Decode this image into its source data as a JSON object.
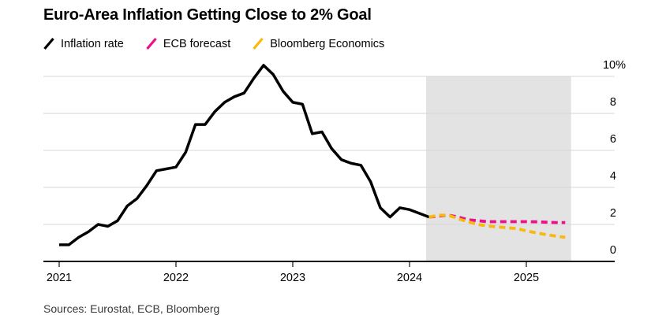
{
  "header": {
    "title": "Euro-Area Inflation Getting Close to 2% Goal"
  },
  "legend": [
    {
      "label": "Inflation rate",
      "color": "#000000"
    },
    {
      "label": "ECB forecast",
      "color": "#ec108d"
    },
    {
      "label": "Bloomberg Economics",
      "color": "#f8b90d"
    }
  ],
  "footer": {
    "sources": "Sources: Eurostat, ECB, Bloomberg"
  },
  "chart_data": {
    "type": "line",
    "title": "Euro-Area Inflation Getting Close to 2% Goal",
    "xlabel": "",
    "ylabel": "",
    "y_axis_suffix": "%",
    "y_ticks": [
      0,
      2,
      4,
      6,
      8,
      10
    ],
    "ylim": [
      0,
      10.9
    ],
    "grid": "horizontal",
    "legend_position": "top-left",
    "x_unit": "months since Jan 2021",
    "x_ticks": [
      {
        "label": "2021",
        "month_index": 0
      },
      {
        "label": "2022",
        "month_index": 12
      },
      {
        "label": "2023",
        "month_index": 24
      },
      {
        "label": "2024",
        "month_index": 36
      },
      {
        "label": "2025",
        "month_index": 48
      }
    ],
    "forecast_band": {
      "start_month_index": 37.7,
      "end_month_index": 52.6
    },
    "series": [
      {
        "name": "Inflation rate",
        "color": "#000000",
        "dash": false,
        "start_month_index": 0,
        "values": [
          0.9,
          0.9,
          1.3,
          1.6,
          2.0,
          1.9,
          2.2,
          3.0,
          3.4,
          4.1,
          4.9,
          5.0,
          5.1,
          5.9,
          7.4,
          7.4,
          8.1,
          8.6,
          8.9,
          9.1,
          9.9,
          10.6,
          10.1,
          9.2,
          8.6,
          8.5,
          6.9,
          7.0,
          6.1,
          5.5,
          5.3,
          5.2,
          4.3,
          2.9,
          2.4,
          2.9,
          2.8,
          2.6,
          2.4
        ]
      },
      {
        "name": "ECB forecast",
        "color": "#ec108d",
        "dash": true,
        "start_month_index": 38,
        "values": [
          2.4,
          2.45,
          2.5,
          2.4,
          2.25,
          2.2,
          2.15,
          2.15,
          2.15,
          2.15,
          2.15,
          2.14,
          2.12,
          2.1,
          2.1
        ]
      },
      {
        "name": "Bloomberg Economics",
        "color": "#f8b90d",
        "dash": true,
        "start_month_index": 38,
        "values": [
          2.4,
          2.5,
          2.5,
          2.3,
          2.15,
          2.0,
          1.92,
          1.87,
          1.82,
          1.78,
          1.65,
          1.55,
          1.45,
          1.37,
          1.3
        ]
      }
    ]
  }
}
